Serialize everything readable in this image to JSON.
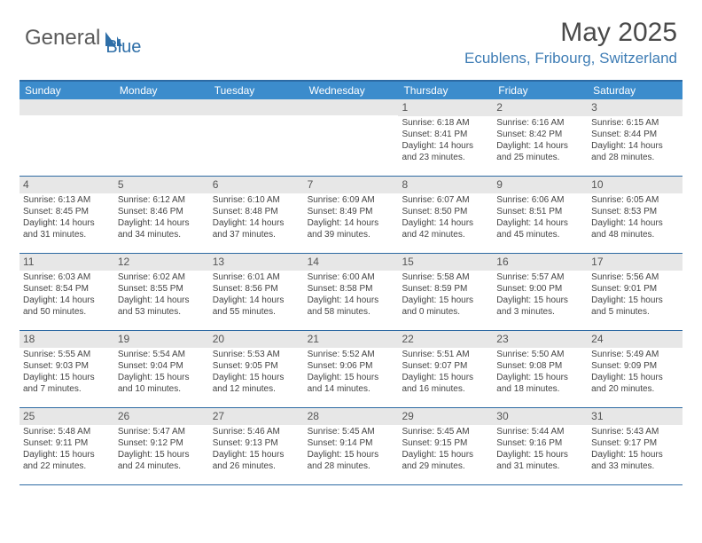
{
  "brand": {
    "part1": "General",
    "part2": "Blue"
  },
  "title": "May 2025",
  "location": "Ecublens, Fribourg, Switzerland",
  "colors": {
    "header_bar": "#3c8ccc",
    "rule": "#2d6aa3",
    "daynum_bg": "#e7e7e7",
    "brand_blue": "#2f6fa8"
  },
  "weekdays": [
    "Sunday",
    "Monday",
    "Tuesday",
    "Wednesday",
    "Thursday",
    "Friday",
    "Saturday"
  ],
  "weeks": [
    [
      {
        "n": "",
        "lines": []
      },
      {
        "n": "",
        "lines": []
      },
      {
        "n": "",
        "lines": []
      },
      {
        "n": "",
        "lines": []
      },
      {
        "n": "1",
        "lines": [
          "Sunrise: 6:18 AM",
          "Sunset: 8:41 PM",
          "Daylight: 14 hours",
          "and 23 minutes."
        ]
      },
      {
        "n": "2",
        "lines": [
          "Sunrise: 6:16 AM",
          "Sunset: 8:42 PM",
          "Daylight: 14 hours",
          "and 25 minutes."
        ]
      },
      {
        "n": "3",
        "lines": [
          "Sunrise: 6:15 AM",
          "Sunset: 8:44 PM",
          "Daylight: 14 hours",
          "and 28 minutes."
        ]
      }
    ],
    [
      {
        "n": "4",
        "lines": [
          "Sunrise: 6:13 AM",
          "Sunset: 8:45 PM",
          "Daylight: 14 hours",
          "and 31 minutes."
        ]
      },
      {
        "n": "5",
        "lines": [
          "Sunrise: 6:12 AM",
          "Sunset: 8:46 PM",
          "Daylight: 14 hours",
          "and 34 minutes."
        ]
      },
      {
        "n": "6",
        "lines": [
          "Sunrise: 6:10 AM",
          "Sunset: 8:48 PM",
          "Daylight: 14 hours",
          "and 37 minutes."
        ]
      },
      {
        "n": "7",
        "lines": [
          "Sunrise: 6:09 AM",
          "Sunset: 8:49 PM",
          "Daylight: 14 hours",
          "and 39 minutes."
        ]
      },
      {
        "n": "8",
        "lines": [
          "Sunrise: 6:07 AM",
          "Sunset: 8:50 PM",
          "Daylight: 14 hours",
          "and 42 minutes."
        ]
      },
      {
        "n": "9",
        "lines": [
          "Sunrise: 6:06 AM",
          "Sunset: 8:51 PM",
          "Daylight: 14 hours",
          "and 45 minutes."
        ]
      },
      {
        "n": "10",
        "lines": [
          "Sunrise: 6:05 AM",
          "Sunset: 8:53 PM",
          "Daylight: 14 hours",
          "and 48 minutes."
        ]
      }
    ],
    [
      {
        "n": "11",
        "lines": [
          "Sunrise: 6:03 AM",
          "Sunset: 8:54 PM",
          "Daylight: 14 hours",
          "and 50 minutes."
        ]
      },
      {
        "n": "12",
        "lines": [
          "Sunrise: 6:02 AM",
          "Sunset: 8:55 PM",
          "Daylight: 14 hours",
          "and 53 minutes."
        ]
      },
      {
        "n": "13",
        "lines": [
          "Sunrise: 6:01 AM",
          "Sunset: 8:56 PM",
          "Daylight: 14 hours",
          "and 55 minutes."
        ]
      },
      {
        "n": "14",
        "lines": [
          "Sunrise: 6:00 AM",
          "Sunset: 8:58 PM",
          "Daylight: 14 hours",
          "and 58 minutes."
        ]
      },
      {
        "n": "15",
        "lines": [
          "Sunrise: 5:58 AM",
          "Sunset: 8:59 PM",
          "Daylight: 15 hours",
          "and 0 minutes."
        ]
      },
      {
        "n": "16",
        "lines": [
          "Sunrise: 5:57 AM",
          "Sunset: 9:00 PM",
          "Daylight: 15 hours",
          "and 3 minutes."
        ]
      },
      {
        "n": "17",
        "lines": [
          "Sunrise: 5:56 AM",
          "Sunset: 9:01 PM",
          "Daylight: 15 hours",
          "and 5 minutes."
        ]
      }
    ],
    [
      {
        "n": "18",
        "lines": [
          "Sunrise: 5:55 AM",
          "Sunset: 9:03 PM",
          "Daylight: 15 hours",
          "and 7 minutes."
        ]
      },
      {
        "n": "19",
        "lines": [
          "Sunrise: 5:54 AM",
          "Sunset: 9:04 PM",
          "Daylight: 15 hours",
          "and 10 minutes."
        ]
      },
      {
        "n": "20",
        "lines": [
          "Sunrise: 5:53 AM",
          "Sunset: 9:05 PM",
          "Daylight: 15 hours",
          "and 12 minutes."
        ]
      },
      {
        "n": "21",
        "lines": [
          "Sunrise: 5:52 AM",
          "Sunset: 9:06 PM",
          "Daylight: 15 hours",
          "and 14 minutes."
        ]
      },
      {
        "n": "22",
        "lines": [
          "Sunrise: 5:51 AM",
          "Sunset: 9:07 PM",
          "Daylight: 15 hours",
          "and 16 minutes."
        ]
      },
      {
        "n": "23",
        "lines": [
          "Sunrise: 5:50 AM",
          "Sunset: 9:08 PM",
          "Daylight: 15 hours",
          "and 18 minutes."
        ]
      },
      {
        "n": "24",
        "lines": [
          "Sunrise: 5:49 AM",
          "Sunset: 9:09 PM",
          "Daylight: 15 hours",
          "and 20 minutes."
        ]
      }
    ],
    [
      {
        "n": "25",
        "lines": [
          "Sunrise: 5:48 AM",
          "Sunset: 9:11 PM",
          "Daylight: 15 hours",
          "and 22 minutes."
        ]
      },
      {
        "n": "26",
        "lines": [
          "Sunrise: 5:47 AM",
          "Sunset: 9:12 PM",
          "Daylight: 15 hours",
          "and 24 minutes."
        ]
      },
      {
        "n": "27",
        "lines": [
          "Sunrise: 5:46 AM",
          "Sunset: 9:13 PM",
          "Daylight: 15 hours",
          "and 26 minutes."
        ]
      },
      {
        "n": "28",
        "lines": [
          "Sunrise: 5:45 AM",
          "Sunset: 9:14 PM",
          "Daylight: 15 hours",
          "and 28 minutes."
        ]
      },
      {
        "n": "29",
        "lines": [
          "Sunrise: 5:45 AM",
          "Sunset: 9:15 PM",
          "Daylight: 15 hours",
          "and 29 minutes."
        ]
      },
      {
        "n": "30",
        "lines": [
          "Sunrise: 5:44 AM",
          "Sunset: 9:16 PM",
          "Daylight: 15 hours",
          "and 31 minutes."
        ]
      },
      {
        "n": "31",
        "lines": [
          "Sunrise: 5:43 AM",
          "Sunset: 9:17 PM",
          "Daylight: 15 hours",
          "and 33 minutes."
        ]
      }
    ]
  ]
}
